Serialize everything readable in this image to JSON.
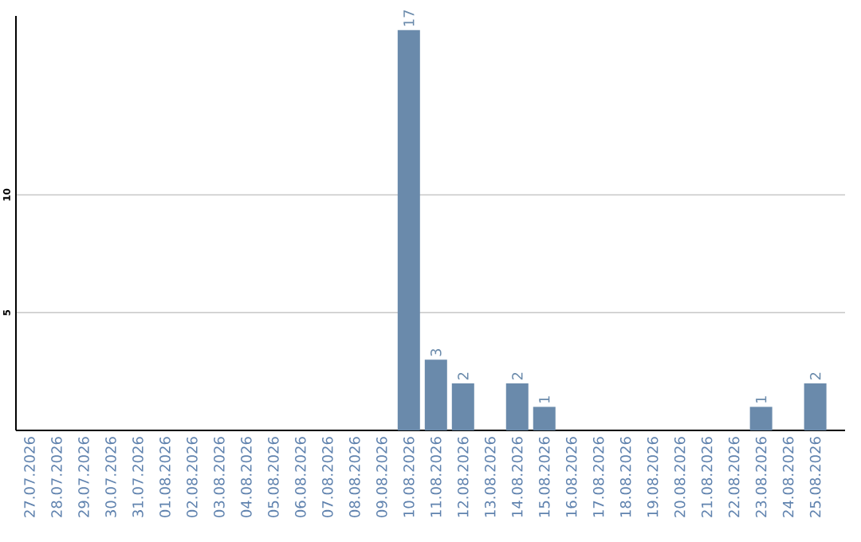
{
  "chart_data": {
    "type": "bar",
    "categories": [
      "27.07.2026",
      "28.07.2026",
      "29.07.2026",
      "30.07.2026",
      "31.07.2026",
      "01.08.2026",
      "02.08.2026",
      "03.08.2026",
      "04.08.2026",
      "05.08.2026",
      "06.08.2026",
      "07.08.2026",
      "08.08.2026",
      "09.08.2026",
      "10.08.2026",
      "11.08.2026",
      "12.08.2026",
      "13.08.2026",
      "14.08.2026",
      "15.08.2026",
      "16.08.2026",
      "17.08.2026",
      "18.08.2026",
      "19.08.2026",
      "20.08.2026",
      "21.08.2026",
      "22.08.2026",
      "23.08.2026",
      "24.08.2026",
      "25.08.2026"
    ],
    "values": [
      0,
      0,
      0,
      0,
      0,
      0,
      0,
      0,
      0,
      0,
      0,
      0,
      0,
      0,
      17,
      3,
      2,
      0,
      2,
      1,
      0,
      0,
      0,
      0,
      0,
      0,
      0,
      1,
      0,
      2
    ],
    "value_labels": [
      null,
      null,
      null,
      null,
      null,
      null,
      null,
      null,
      null,
      null,
      null,
      null,
      null,
      null,
      "17",
      "3",
      "2",
      null,
      "2",
      "1",
      null,
      null,
      null,
      null,
      null,
      null,
      null,
      "1",
      null,
      "2"
    ],
    "color": "#6a8aab",
    "ylim": [
      0,
      17.6
    ],
    "yticks": [
      5,
      10
    ],
    "grid": "y"
  }
}
